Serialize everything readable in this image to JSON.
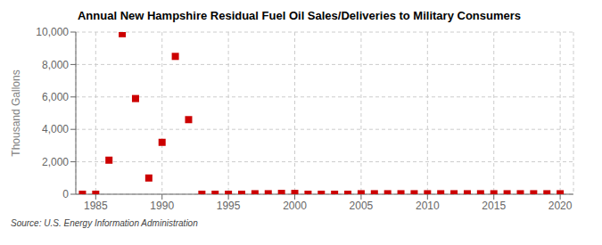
{
  "chart_data": {
    "type": "scatter",
    "title": "Annual New Hampshire Residual Fuel Oil Sales/Deliveries to Military Consumers",
    "y_label": "Thousand Gallons",
    "annotations": [
      "Source: U.S. Energy Information Administration"
    ],
    "x": [
      1984,
      1985,
      1986,
      1987,
      1988,
      1989,
      1990,
      1991,
      1992,
      1993,
      1994,
      1995,
      1996,
      1997,
      1998,
      1999,
      2000,
      2001,
      2002,
      2003,
      2004,
      2005,
      2006,
      2007,
      2008,
      2009,
      2010,
      2011,
      2012,
      2013,
      2014,
      2015,
      2016,
      2017,
      2018,
      2019,
      2020
    ],
    "values": [
      0,
      0,
      2100,
      9900,
      5900,
      1000,
      3200,
      8500,
      4600,
      0,
      0,
      0,
      0,
      30,
      30,
      50,
      50,
      0,
      0,
      0,
      0,
      30,
      30,
      30,
      30,
      30,
      30,
      30,
      30,
      30,
      30,
      30,
      30,
      30,
      30,
      30,
      30
    ],
    "color": "#cc0000",
    "marker": "square",
    "xlim": [
      1983.5,
      2021
    ],
    "xticks": [
      1985,
      1990,
      1995,
      2000,
      2005,
      2010,
      2015,
      2020
    ],
    "ylim": [
      0,
      10000
    ],
    "yticks": [
      0,
      {
        "value": 2000,
        "label": "2,000"
      },
      {
        "value": 4000,
        "label": "4,000"
      },
      {
        "value": 6000,
        "label": "6,000"
      },
      {
        "value": 8000,
        "label": "8,000"
      },
      {
        "value": 10000,
        "label": "10,000"
      }
    ],
    "grid": true
  }
}
